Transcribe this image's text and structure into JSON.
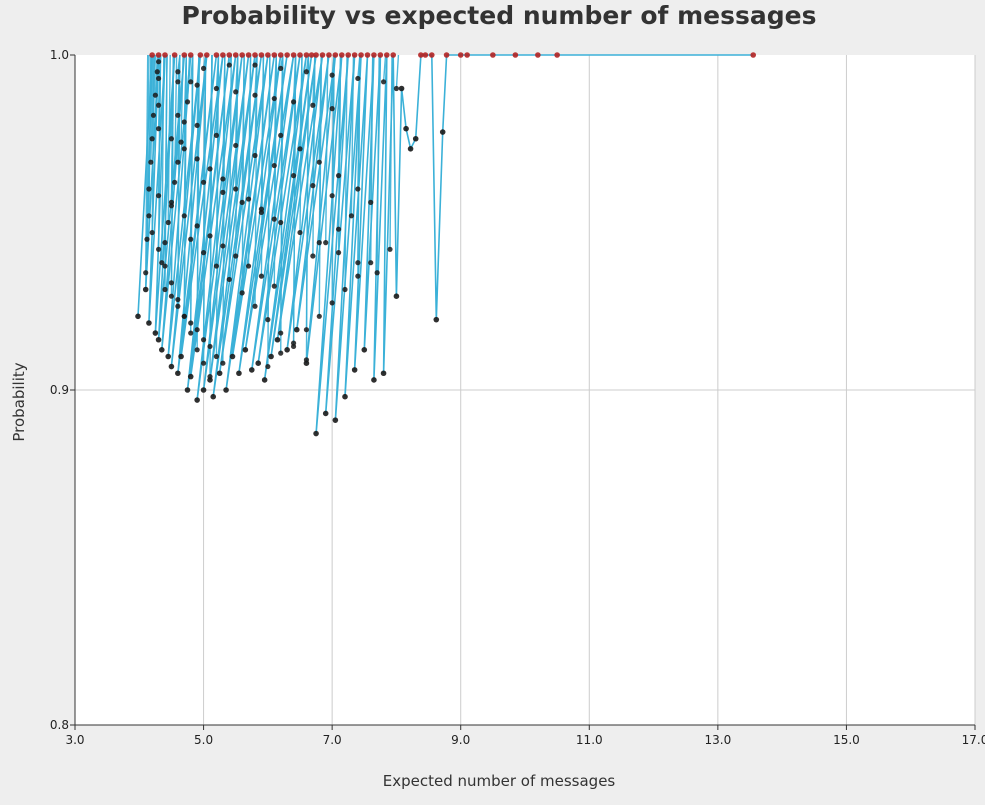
{
  "chart_data": {
    "type": "scatter",
    "title": "Probability vs expected number of messages",
    "xlabel": "Expected number of messages",
    "ylabel": "Probability",
    "xlim": [
      3.0,
      17.0
    ],
    "ylim": [
      0.8,
      1.0
    ],
    "x_ticks": [
      "3.0",
      "5.0",
      "7.0",
      "9.0",
      "11.0",
      "13.0",
      "15.0",
      "17.0"
    ],
    "y_ticks": [
      "0.8",
      "0.9",
      "1.0"
    ],
    "grid": true,
    "legend": "none",
    "colors": {
      "line": "#3bb1d8",
      "point": "#1a1a1a",
      "point_at_one": "#b22222",
      "plot_bg": "#ffffff",
      "page_bg": "#eeeeee",
      "grid": "#cccccc"
    },
    "series": [
      {
        "x": [
          3.98,
          4.2,
          4.1,
          4.3,
          4.15,
          4.4,
          4.25,
          4.55,
          4.3,
          4.7,
          4.35,
          4.8,
          4.45,
          4.95,
          4.5,
          5.05,
          4.6,
          5.2,
          4.65,
          5.3,
          4.75,
          5.4,
          4.8,
          5.5,
          4.9,
          5.6,
          5.0,
          5.7,
          5.1,
          5.8,
          5.15,
          5.9,
          5.25,
          6.0,
          5.35,
          6.1,
          5.45,
          6.2,
          5.55,
          6.3,
          5.65,
          6.4,
          5.75,
          6.5,
          5.85,
          6.6,
          5.95,
          6.68,
          6.05,
          6.75,
          6.15,
          6.85,
          6.3,
          6.95,
          6.45,
          7.05,
          6.6,
          7.15,
          6.75,
          7.25,
          6.9,
          7.35,
          7.05,
          7.45,
          7.2,
          7.55,
          7.35,
          7.65,
          7.5,
          7.75,
          7.65,
          7.85,
          7.8,
          7.95,
          8.0,
          8.08,
          8.15,
          8.22,
          8.3,
          8.38,
          8.45,
          8.55,
          8.62,
          8.72,
          8.78,
          9.0,
          9.1,
          9.5,
          9.85,
          10.2,
          10.5,
          13.55
        ],
        "y": [
          0.922,
          1.0,
          0.93,
          1.0,
          0.92,
          1.0,
          0.917,
          1.0,
          0.915,
          1.0,
          0.912,
          1.0,
          0.91,
          1.0,
          0.907,
          1.0,
          0.905,
          1.0,
          0.91,
          1.0,
          0.9,
          1.0,
          0.904,
          1.0,
          0.897,
          1.0,
          0.9,
          1.0,
          0.903,
          1.0,
          0.898,
          1.0,
          0.905,
          1.0,
          0.9,
          1.0,
          0.91,
          1.0,
          0.905,
          1.0,
          0.912,
          1.0,
          0.906,
          1.0,
          0.908,
          1.0,
          0.903,
          1.0,
          0.91,
          1.0,
          0.915,
          1.0,
          0.912,
          1.0,
          0.918,
          1.0,
          0.908,
          1.0,
          0.887,
          1.0,
          0.893,
          1.0,
          0.891,
          1.0,
          0.898,
          1.0,
          0.906,
          1.0,
          0.912,
          1.0,
          0.903,
          1.0,
          0.905,
          1.0,
          0.928,
          0.99,
          0.978,
          0.972,
          0.975,
          1.0,
          1.0,
          1.0,
          0.921,
          0.977,
          1.0,
          1.0,
          1.0,
          1.0,
          1.0,
          1.0,
          1.0,
          1.0
        ]
      }
    ],
    "cloud_points": [
      [
        4.1,
        0.935
      ],
      [
        4.12,
        0.945
      ],
      [
        4.15,
        0.952
      ],
      [
        4.15,
        0.96
      ],
      [
        4.18,
        0.968
      ],
      [
        4.2,
        0.975
      ],
      [
        4.22,
        0.982
      ],
      [
        4.25,
        0.988
      ],
      [
        4.28,
        0.995
      ],
      [
        4.3,
        0.998
      ],
      [
        4.35,
        0.938
      ],
      [
        4.4,
        0.944
      ],
      [
        4.45,
        0.95
      ],
      [
        4.5,
        0.956
      ],
      [
        4.55,
        0.962
      ],
      [
        4.6,
        0.968
      ],
      [
        4.65,
        0.974
      ],
      [
        4.7,
        0.98
      ],
      [
        4.75,
        0.986
      ],
      [
        4.8,
        0.992
      ],
      [
        4.4,
        0.93
      ],
      [
        4.5,
        0.928
      ],
      [
        4.6,
        0.925
      ],
      [
        4.7,
        0.922
      ],
      [
        4.8,
        0.92
      ],
      [
        4.9,
        0.918
      ],
      [
        5.0,
        0.915
      ],
      [
        5.1,
        0.913
      ],
      [
        5.2,
        0.91
      ],
      [
        5.3,
        0.908
      ],
      [
        4.3,
        0.958
      ],
      [
        4.5,
        0.955
      ],
      [
        4.7,
        0.952
      ],
      [
        4.9,
        0.949
      ],
      [
        5.1,
        0.946
      ],
      [
        5.3,
        0.943
      ],
      [
        5.5,
        0.94
      ],
      [
        5.7,
        0.937
      ],
      [
        5.9,
        0.934
      ],
      [
        6.1,
        0.931
      ],
      [
        4.3,
        0.978
      ],
      [
        4.5,
        0.975
      ],
      [
        4.7,
        0.972
      ],
      [
        4.9,
        0.969
      ],
      [
        5.1,
        0.966
      ],
      [
        5.3,
        0.963
      ],
      [
        5.5,
        0.96
      ],
      [
        5.7,
        0.957
      ],
      [
        5.9,
        0.954
      ],
      [
        6.1,
        0.951
      ],
      [
        4.3,
        0.985
      ],
      [
        4.6,
        0.982
      ],
      [
        4.9,
        0.979
      ],
      [
        5.2,
        0.976
      ],
      [
        5.5,
        0.973
      ],
      [
        5.8,
        0.97
      ],
      [
        6.1,
        0.967
      ],
      [
        6.4,
        0.964
      ],
      [
        6.7,
        0.961
      ],
      [
        7.0,
        0.958
      ],
      [
        4.3,
        0.993
      ],
      [
        4.6,
        0.992
      ],
      [
        4.9,
        0.991
      ],
      [
        5.2,
        0.99
      ],
      [
        5.5,
        0.989
      ],
      [
        5.8,
        0.988
      ],
      [
        6.1,
        0.987
      ],
      [
        6.4,
        0.986
      ],
      [
        6.7,
        0.985
      ],
      [
        7.0,
        0.984
      ],
      [
        4.8,
        0.945
      ],
      [
        5.0,
        0.941
      ],
      [
        5.2,
        0.937
      ],
      [
        5.4,
        0.933
      ],
      [
        5.6,
        0.929
      ],
      [
        5.8,
        0.925
      ],
      [
        6.0,
        0.921
      ],
      [
        6.2,
        0.917
      ],
      [
        6.4,
        0.913
      ],
      [
        6.6,
        0.909
      ],
      [
        5.0,
        0.962
      ],
      [
        5.3,
        0.959
      ],
      [
        5.6,
        0.956
      ],
      [
        5.9,
        0.953
      ],
      [
        6.2,
        0.95
      ],
      [
        6.5,
        0.947
      ],
      [
        6.8,
        0.944
      ],
      [
        7.1,
        0.941
      ],
      [
        7.4,
        0.938
      ],
      [
        7.7,
        0.935
      ],
      [
        4.6,
        0.995
      ],
      [
        5.0,
        0.996
      ],
      [
        5.4,
        0.997
      ],
      [
        5.8,
        0.997
      ],
      [
        6.2,
        0.996
      ],
      [
        6.6,
        0.995
      ],
      [
        7.0,
        0.994
      ],
      [
        7.4,
        0.993
      ],
      [
        7.8,
        0.992
      ],
      [
        8.0,
        0.99
      ],
      [
        4.2,
        0.947
      ],
      [
        4.3,
        0.942
      ],
      [
        4.4,
        0.937
      ],
      [
        4.5,
        0.932
      ],
      [
        4.6,
        0.927
      ],
      [
        4.7,
        0.922
      ],
      [
        4.8,
        0.917
      ],
      [
        4.9,
        0.912
      ],
      [
        5.0,
        0.908
      ],
      [
        5.1,
        0.904
      ],
      [
        6.2,
        0.976
      ],
      [
        6.5,
        0.972
      ],
      [
        6.8,
        0.968
      ],
      [
        7.1,
        0.964
      ],
      [
        7.4,
        0.96
      ],
      [
        7.6,
        0.956
      ],
      [
        7.3,
        0.952
      ],
      [
        7.1,
        0.948
      ],
      [
        6.9,
        0.944
      ],
      [
        6.7,
        0.94
      ],
      [
        7.2,
        0.93
      ],
      [
        7.4,
        0.934
      ],
      [
        7.6,
        0.938
      ],
      [
        7.9,
        0.942
      ],
      [
        7.0,
        0.926
      ],
      [
        6.8,
        0.922
      ],
      [
        6.6,
        0.918
      ],
      [
        6.4,
        0.914
      ],
      [
        6.2,
        0.911
      ],
      [
        6.0,
        0.907
      ]
    ]
  }
}
